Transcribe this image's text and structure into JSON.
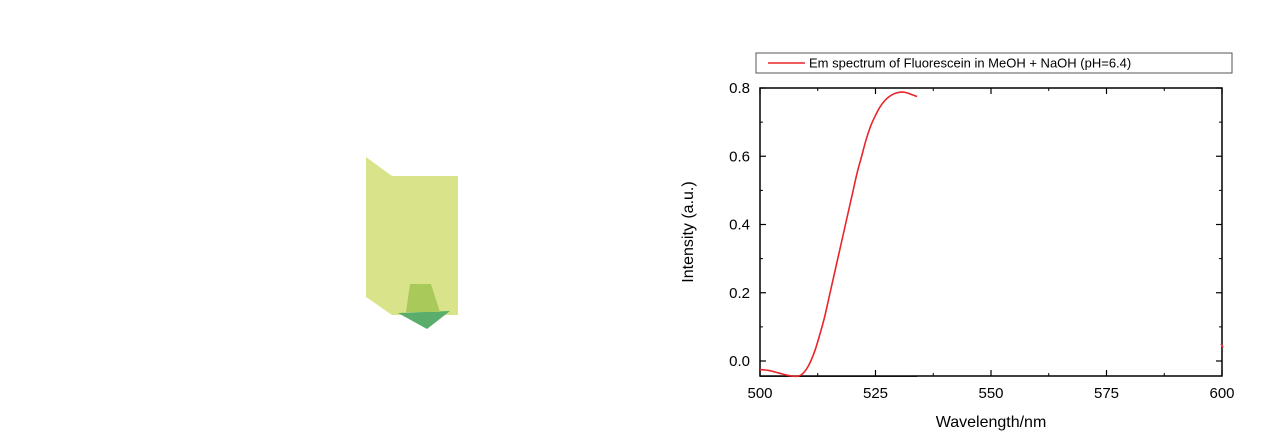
{
  "colors": {
    "curve": "#e8262a",
    "cuvette_body": "#d9e48a",
    "cuvette_cap": "#a9c95b",
    "cuvette_glow": "#5aad6b",
    "axis": "#000000"
  },
  "chart_data": {
    "type": "line",
    "title": "",
    "xlabel": "Wavelength/nm",
    "ylabel": "Intensity (a.u.)",
    "xlim": [
      500,
      600
    ],
    "ylim": [
      -0.05,
      0.8
    ],
    "x_ticks": [
      500,
      525,
      550,
      575,
      600
    ],
    "x_tick_labels": [
      "500",
      "525",
      "550",
      "575",
      "600"
    ],
    "y_ticks": [
      0.0,
      0.2,
      0.4,
      0.6,
      0.8
    ],
    "y_tick_labels": [
      "0.0",
      "0.2",
      "0.4",
      "0.6",
      "0.8"
    ],
    "grid": false,
    "legend": {
      "position": "top",
      "entries": [
        "Em spectrum of Fluorescein in MeOH + NaOH (pH=6.4)"
      ]
    },
    "series": [
      {
        "name": "Em spectrum of Fluorescein in MeOH + NaOH (pH=6.4)",
        "color": "#e8262a",
        "x": [
          500,
          502,
          504,
          506,
          508,
          509,
          510,
          511,
          512,
          513,
          514,
          515,
          516,
          517,
          518,
          519,
          520,
          521,
          522,
          523,
          524,
          525,
          526,
          527,
          528,
          529,
          530,
          531,
          532,
          533,
          534
        ],
        "y": [
          -0.025,
          -0.028,
          -0.035,
          -0.042,
          -0.045,
          -0.04,
          -0.025,
          0.0,
          0.035,
          0.08,
          0.13,
          0.19,
          0.25,
          0.31,
          0.37,
          0.43,
          0.49,
          0.55,
          0.6,
          0.65,
          0.69,
          0.72,
          0.745,
          0.763,
          0.775,
          0.783,
          0.787,
          0.788,
          0.785,
          0.78,
          0.775
        ]
      }
    ],
    "annotations": [
      {
        "type": "baseline-segment",
        "x_from": 500,
        "x_to": 534,
        "y": -0.045
      },
      {
        "type": "edge-mark",
        "x": 600,
        "y": 0.045
      }
    ]
  }
}
